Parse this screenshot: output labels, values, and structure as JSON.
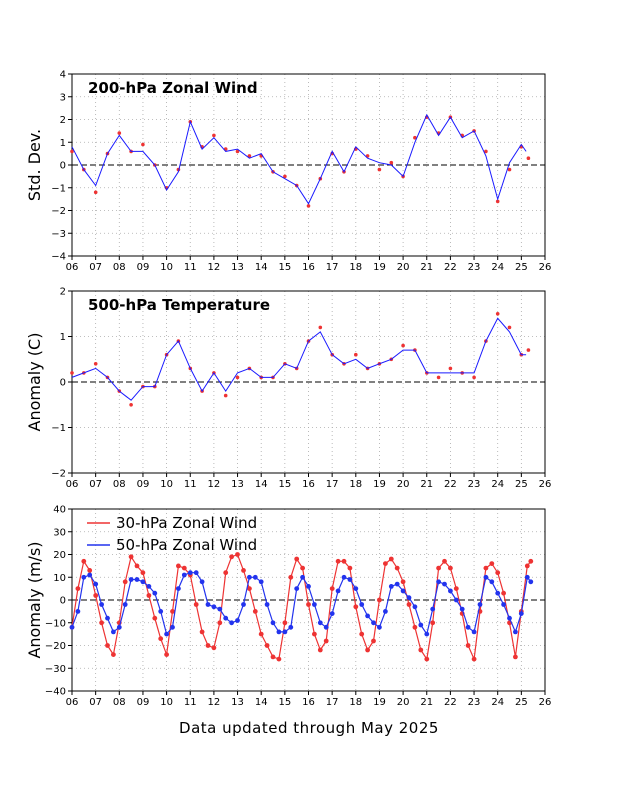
{
  "footer_text": "Data updated through May 2025",
  "colors": {
    "dots_red": "#ee3333",
    "dots_blue": "#2233ee",
    "line_blue": "#1a1aff",
    "grid": "#aaaaaa"
  },
  "chart_data": [
    {
      "type": "line",
      "title": "200-hPa Zonal Wind",
      "ylabel": "Std. Dev.",
      "ylim": [
        -4,
        4
      ],
      "xlim": [
        2006,
        2026
      ],
      "grid": true,
      "x_tick_labels": [
        "06",
        "07",
        "08",
        "09",
        "10",
        "11",
        "12",
        "13",
        "14",
        "15",
        "16",
        "17",
        "18",
        "19",
        "20",
        "21",
        "22",
        "23",
        "24",
        "25",
        "26"
      ],
      "y_ticks": [
        -4,
        -3,
        -2,
        -1,
        0,
        1,
        2,
        3,
        4
      ],
      "y_tick_labels": [
        "−4",
        "−3",
        "−2",
        "−1",
        "0",
        "1",
        "2",
        "3",
        "4"
      ],
      "series": [
        {
          "style": "dots",
          "color": "#ee3333",
          "x": [
            2006.0,
            2006.5,
            2007.0,
            2007.5,
            2008.0,
            2008.5,
            2009.0,
            2009.5,
            2010.0,
            2010.5,
            2011.0,
            2011.5,
            2012.0,
            2012.5,
            2013.0,
            2013.5,
            2014.0,
            2014.5,
            2015.0,
            2015.5,
            2016.0,
            2016.5,
            2017.0,
            2017.5,
            2018.0,
            2018.5,
            2019.0,
            2019.5,
            2020.0,
            2020.5,
            2021.0,
            2021.5,
            2022.0,
            2022.5,
            2023.0,
            2023.5,
            2024.0,
            2024.5,
            2025.0,
            2025.3
          ],
          "y": [
            0.6,
            -0.2,
            -1.2,
            0.5,
            1.4,
            0.6,
            0.9,
            0.0,
            -1.0,
            -0.2,
            1.9,
            0.8,
            1.3,
            0.7,
            0.6,
            0.4,
            0.4,
            -0.3,
            -0.5,
            -0.9,
            -1.8,
            -0.6,
            0.5,
            -0.3,
            0.7,
            0.4,
            -0.2,
            0.1,
            -0.5,
            1.2,
            2.1,
            1.4,
            2.1,
            1.3,
            1.5,
            0.6,
            -1.6,
            -0.2,
            0.8,
            0.3
          ]
        },
        {
          "style": "line",
          "color": "#1a1aff",
          "x": [
            2006.0,
            2006.5,
            2007.0,
            2007.5,
            2008.0,
            2008.5,
            2009.0,
            2009.5,
            2010.0,
            2010.5,
            2011.0,
            2011.5,
            2012.0,
            2012.5,
            2013.0,
            2013.5,
            2014.0,
            2014.5,
            2015.0,
            2015.5,
            2016.0,
            2016.5,
            2017.0,
            2017.5,
            2018.0,
            2018.5,
            2019.0,
            2019.5,
            2020.0,
            2020.5,
            2021.0,
            2021.5,
            2022.0,
            2022.5,
            2023.0,
            2023.5,
            2024.0,
            2024.5,
            2025.0,
            2025.2
          ],
          "y": [
            0.8,
            -0.2,
            -0.9,
            0.5,
            1.3,
            0.6,
            0.6,
            0.0,
            -1.1,
            -0.3,
            1.9,
            0.7,
            1.2,
            0.6,
            0.7,
            0.3,
            0.5,
            -0.3,
            -0.6,
            -0.9,
            -1.7,
            -0.6,
            0.6,
            -0.3,
            0.8,
            0.3,
            0.1,
            0.0,
            -0.5,
            1.0,
            2.2,
            1.3,
            2.1,
            1.2,
            1.5,
            0.4,
            -1.5,
            0.1,
            0.9,
            0.6
          ]
        }
      ]
    },
    {
      "type": "line",
      "title": "500-hPa Temperature",
      "ylabel": "Anomaly (C)",
      "ylim": [
        -2,
        2
      ],
      "xlim": [
        2006,
        2026
      ],
      "grid": true,
      "x_tick_labels": [
        "06",
        "07",
        "08",
        "09",
        "10",
        "11",
        "12",
        "13",
        "14",
        "15",
        "16",
        "17",
        "18",
        "19",
        "20",
        "21",
        "22",
        "23",
        "24",
        "25",
        "26"
      ],
      "y_ticks": [
        -2,
        -1,
        0,
        1,
        2
      ],
      "y_tick_labels": [
        "−2",
        "−1",
        "0",
        "1",
        "2"
      ],
      "series": [
        {
          "style": "dots",
          "color": "#ee3333",
          "x": [
            2006.0,
            2006.5,
            2007.0,
            2007.5,
            2008.0,
            2008.5,
            2009.0,
            2009.5,
            2010.0,
            2010.5,
            2011.0,
            2011.5,
            2012.0,
            2012.5,
            2013.0,
            2013.5,
            2014.0,
            2014.5,
            2015.0,
            2015.5,
            2016.0,
            2016.5,
            2017.0,
            2017.5,
            2018.0,
            2018.5,
            2019.0,
            2019.5,
            2020.0,
            2020.5,
            2021.0,
            2021.5,
            2022.0,
            2022.5,
            2023.0,
            2023.5,
            2024.0,
            2024.5,
            2025.0,
            2025.3
          ],
          "y": [
            0.2,
            0.2,
            0.4,
            0.1,
            -0.2,
            -0.5,
            -0.1,
            -0.1,
            0.6,
            0.9,
            0.3,
            -0.2,
            0.2,
            -0.3,
            0.1,
            0.3,
            0.1,
            0.1,
            0.4,
            0.3,
            0.9,
            1.2,
            0.6,
            0.4,
            0.6,
            0.3,
            0.4,
            0.5,
            0.8,
            0.7,
            0.2,
            0.1,
            0.3,
            0.2,
            0.1,
            0.9,
            1.5,
            1.2,
            0.6,
            0.7
          ]
        },
        {
          "style": "line",
          "color": "#1a1aff",
          "x": [
            2006.0,
            2006.5,
            2007.0,
            2007.5,
            2008.0,
            2008.5,
            2009.0,
            2009.5,
            2010.0,
            2010.5,
            2011.0,
            2011.5,
            2012.0,
            2012.5,
            2013.0,
            2013.5,
            2014.0,
            2014.5,
            2015.0,
            2015.5,
            2016.0,
            2016.5,
            2017.0,
            2017.5,
            2018.0,
            2018.5,
            2019.0,
            2019.5,
            2020.0,
            2020.5,
            2021.0,
            2021.5,
            2022.0,
            2022.5,
            2023.0,
            2023.5,
            2024.0,
            2024.5,
            2025.0,
            2025.2
          ],
          "y": [
            0.1,
            0.2,
            0.3,
            0.1,
            -0.2,
            -0.4,
            -0.1,
            -0.1,
            0.6,
            0.9,
            0.3,
            -0.2,
            0.2,
            -0.2,
            0.2,
            0.3,
            0.1,
            0.1,
            0.4,
            0.3,
            0.9,
            1.1,
            0.6,
            0.4,
            0.5,
            0.3,
            0.4,
            0.5,
            0.7,
            0.7,
            0.2,
            0.2,
            0.2,
            0.2,
            0.2,
            0.9,
            1.4,
            1.1,
            0.6,
            0.6
          ]
        }
      ]
    },
    {
      "type": "line",
      "ylabel": "Anomaly (m/s)",
      "ylim": [
        -40,
        40
      ],
      "xlim": [
        2006,
        2026
      ],
      "grid": true,
      "legend": "top-left",
      "x_tick_labels": [
        "06",
        "07",
        "08",
        "09",
        "10",
        "11",
        "12",
        "13",
        "14",
        "15",
        "16",
        "17",
        "18",
        "19",
        "20",
        "21",
        "22",
        "23",
        "24",
        "25",
        "26"
      ],
      "y_ticks": [
        -40,
        -30,
        -20,
        -10,
        0,
        10,
        20,
        30,
        40
      ],
      "y_tick_labels": [
        "−40",
        "−30",
        "−20",
        "−10",
        "0",
        "10",
        "20",
        "30",
        "40"
      ],
      "series": [
        {
          "name": "30-hPa Zonal Wind",
          "style": "dots+line",
          "color": "#ee3333",
          "x": [
            2006.0,
            2006.25,
            2006.5,
            2006.75,
            2007.0,
            2007.25,
            2007.5,
            2007.75,
            2008.0,
            2008.25,
            2008.5,
            2008.75,
            2009.0,
            2009.25,
            2009.5,
            2009.75,
            2010.0,
            2010.25,
            2010.5,
            2010.75,
            2011.0,
            2011.25,
            2011.5,
            2011.75,
            2012.0,
            2012.25,
            2012.5,
            2012.75,
            2013.0,
            2013.25,
            2013.5,
            2013.75,
            2014.0,
            2014.25,
            2014.5,
            2014.75,
            2015.0,
            2015.25,
            2015.5,
            2015.75,
            2016.0,
            2016.25,
            2016.5,
            2016.75,
            2017.0,
            2017.25,
            2017.5,
            2017.75,
            2018.0,
            2018.25,
            2018.5,
            2018.75,
            2019.0,
            2019.25,
            2019.5,
            2019.75,
            2020.0,
            2020.25,
            2020.5,
            2020.75,
            2021.0,
            2021.25,
            2021.5,
            2021.75,
            2022.0,
            2022.25,
            2022.5,
            2022.75,
            2023.0,
            2023.25,
            2023.5,
            2023.75,
            2024.0,
            2024.25,
            2024.5,
            2024.75,
            2025.0,
            2025.25,
            2025.4
          ],
          "y": [
            -12,
            5,
            17,
            13,
            2,
            -10,
            -20,
            -24,
            -10,
            8,
            19,
            15,
            12,
            2,
            -8,
            -17,
            -24,
            -5,
            15,
            14,
            11,
            -2,
            -14,
            -20,
            -21,
            -10,
            12,
            19,
            20,
            13,
            5,
            -5,
            -15,
            -20,
            -25,
            -26,
            -10,
            10,
            18,
            14,
            -2,
            -15,
            -22,
            -18,
            5,
            17,
            17,
            14,
            -3,
            -15,
            -22,
            -18,
            0,
            16,
            18,
            14,
            8,
            -2,
            -12,
            -22,
            -26,
            -10,
            14,
            17,
            14,
            5,
            -6,
            -20,
            -26,
            -5,
            14,
            16,
            12,
            3,
            -10,
            -25,
            -5,
            15,
            17
          ]
        },
        {
          "name": "50-hPa Zonal Wind",
          "style": "dots+line",
          "color": "#2233ee",
          "x": [
            2006.0,
            2006.25,
            2006.5,
            2006.75,
            2007.0,
            2007.25,
            2007.5,
            2007.75,
            2008.0,
            2008.25,
            2008.5,
            2008.75,
            2009.0,
            2009.25,
            2009.5,
            2009.75,
            2010.0,
            2010.25,
            2010.5,
            2010.75,
            2011.0,
            2011.25,
            2011.5,
            2011.75,
            2012.0,
            2012.25,
            2012.5,
            2012.75,
            2013.0,
            2013.25,
            2013.5,
            2013.75,
            2014.0,
            2014.25,
            2014.5,
            2014.75,
            2015.0,
            2015.25,
            2015.5,
            2015.75,
            2016.0,
            2016.25,
            2016.5,
            2016.75,
            2017.0,
            2017.25,
            2017.5,
            2017.75,
            2018.0,
            2018.25,
            2018.5,
            2018.75,
            2019.0,
            2019.25,
            2019.5,
            2019.75,
            2020.0,
            2020.25,
            2020.5,
            2020.75,
            2021.0,
            2021.25,
            2021.5,
            2021.75,
            2022.0,
            2022.25,
            2022.5,
            2022.75,
            2023.0,
            2023.25,
            2023.5,
            2023.75,
            2024.0,
            2024.25,
            2024.5,
            2024.75,
            2025.0,
            2025.25,
            2025.4
          ],
          "y": [
            -12,
            -5,
            10,
            11,
            7,
            -2,
            -8,
            -14,
            -12,
            -2,
            9,
            9,
            8,
            6,
            3,
            -5,
            -15,
            -12,
            5,
            11,
            12,
            12,
            8,
            -2,
            -3,
            -4,
            -8,
            -10,
            -9,
            -2,
            10,
            10,
            8,
            -2,
            -10,
            -14,
            -14,
            -12,
            5,
            10,
            6,
            -2,
            -10,
            -12,
            -6,
            4,
            10,
            9,
            5,
            -2,
            -7,
            -10,
            -12,
            -5,
            6,
            7,
            4,
            1,
            -3,
            -11,
            -15,
            -4,
            8,
            7,
            4,
            0,
            -4,
            -12,
            -14,
            -2,
            10,
            8,
            3,
            -2,
            -8,
            -14,
            -6,
            10,
            8
          ]
        }
      ]
    }
  ]
}
